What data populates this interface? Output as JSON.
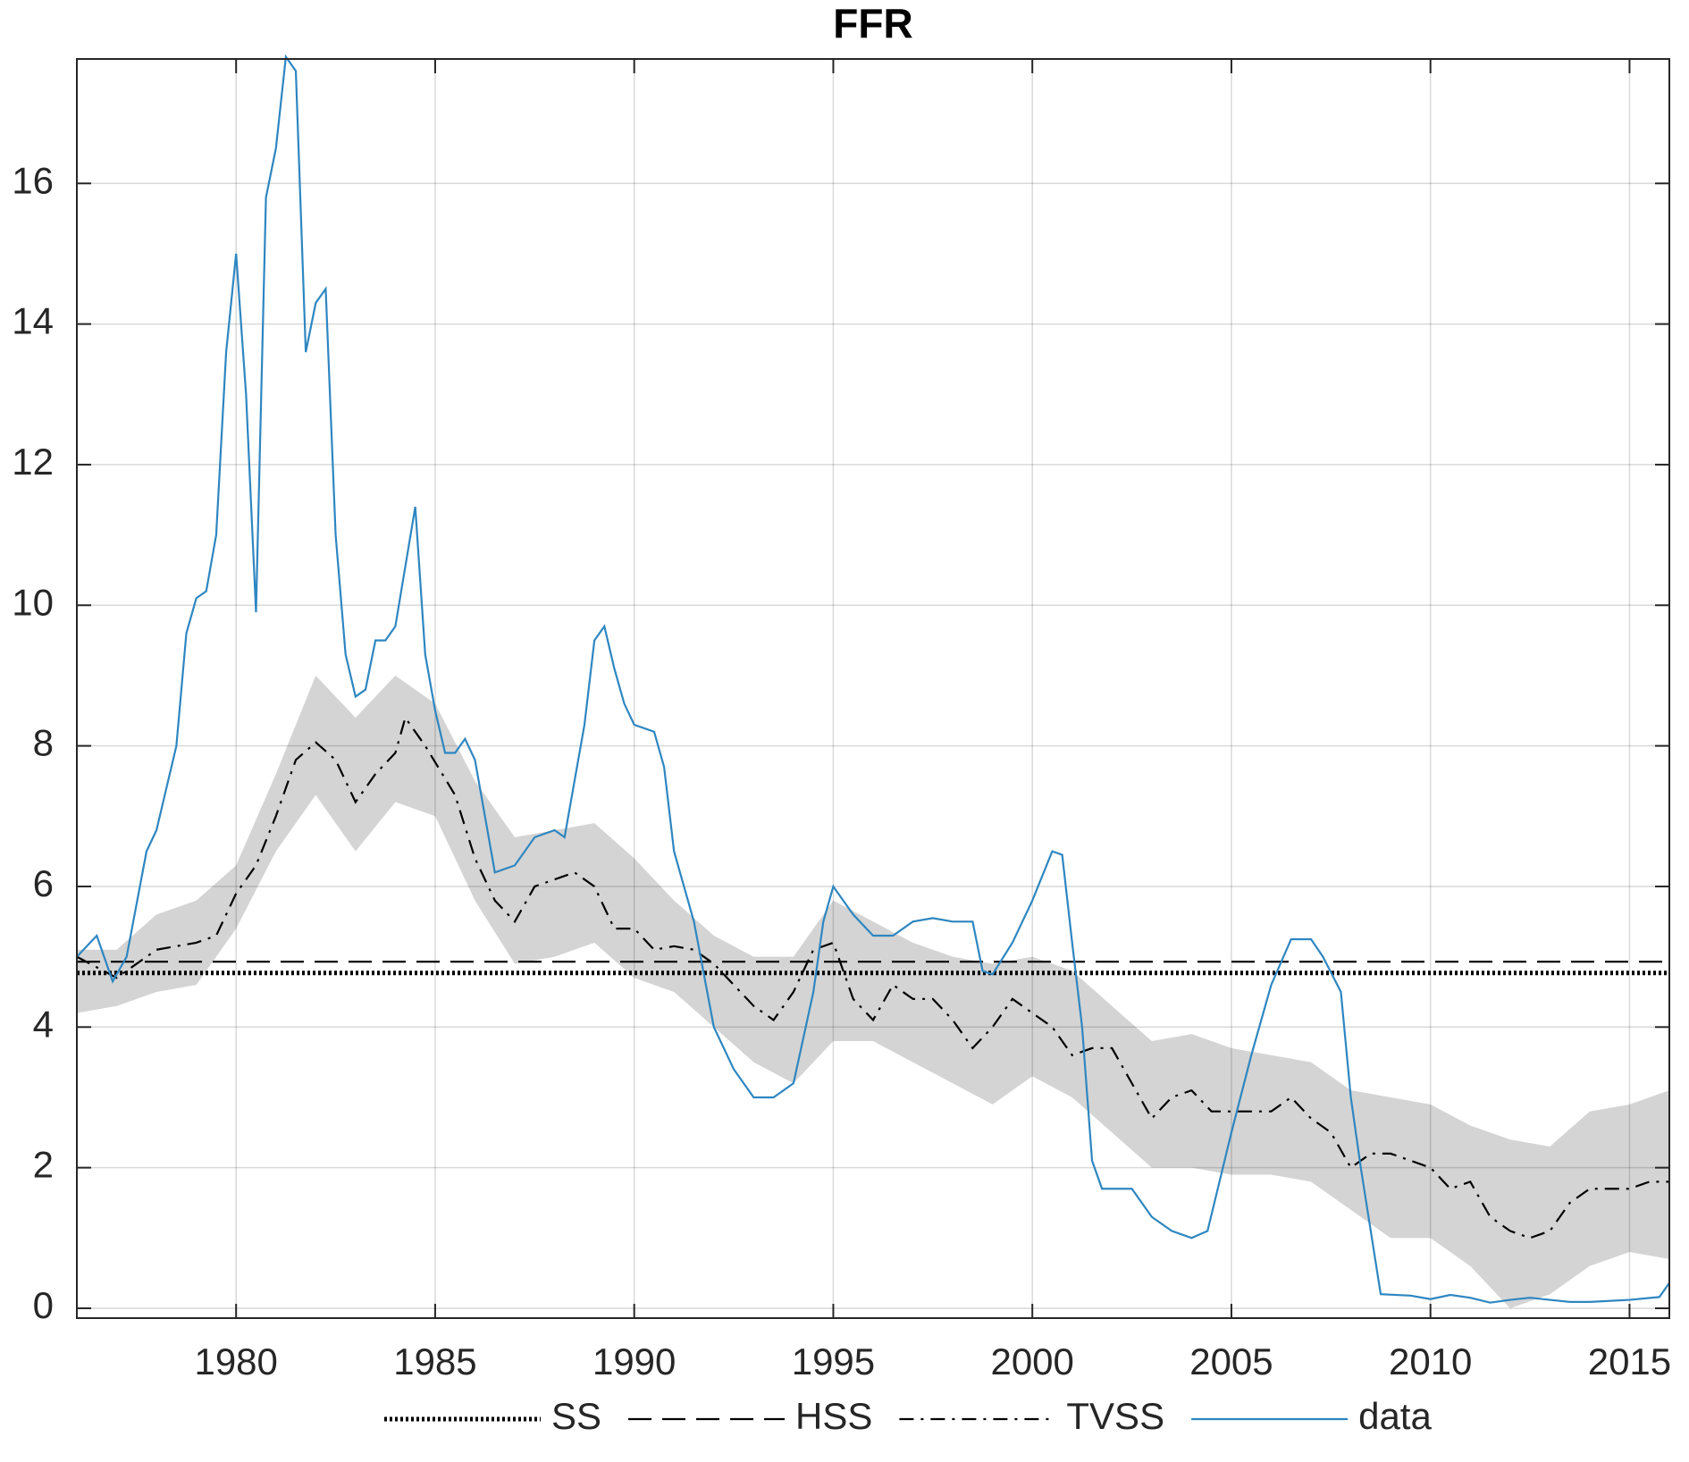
{
  "chart_data": {
    "type": "line",
    "title": "FFR",
    "xlim": [
      1976,
      2016
    ],
    "xticks": [
      1980,
      1985,
      1990,
      1995,
      2000,
      2005,
      2010,
      2015
    ],
    "ylim": [
      -0.14,
      17.77
    ],
    "yticks": [
      0,
      2,
      4,
      6,
      8,
      10,
      12,
      14,
      16
    ],
    "grid": true,
    "legend": "bottom",
    "band": {
      "color": "#d4d4d4",
      "x": [
        1976,
        1977,
        1978,
        1979,
        1980,
        1981,
        1982,
        1983,
        1984,
        1985,
        1986,
        1987,
        1988,
        1989,
        1990,
        1991,
        1992,
        1993,
        1994,
        1995,
        1996,
        1997,
        1998,
        1999,
        2000,
        2001,
        2002,
        2003,
        2004,
        2005,
        2006,
        2007,
        2008,
        2009,
        2010,
        2011,
        2012,
        2013,
        2014,
        2015,
        2016
      ],
      "upper": [
        5.1,
        5.1,
        5.6,
        5.8,
        6.3,
        7.6,
        9.0,
        8.4,
        9.0,
        8.6,
        7.5,
        6.7,
        6.8,
        6.9,
        6.4,
        5.8,
        5.3,
        5.0,
        5.0,
        5.8,
        5.5,
        5.2,
        5.0,
        4.9,
        5.0,
        4.8,
        4.3,
        3.8,
        3.9,
        3.7,
        3.6,
        3.5,
        3.1,
        3.0,
        2.9,
        2.6,
        2.4,
        2.3,
        2.8,
        2.9,
        3.1
      ],
      "lower": [
        4.2,
        4.3,
        4.5,
        4.6,
        5.4,
        6.5,
        7.3,
        6.5,
        7.2,
        7.0,
        5.8,
        4.9,
        5.0,
        5.2,
        4.7,
        4.5,
        4.0,
        3.5,
        3.2,
        3.8,
        3.8,
        3.5,
        3.2,
        2.9,
        3.3,
        3.0,
        2.5,
        2.0,
        2.0,
        1.9,
        1.9,
        1.8,
        1.4,
        1.0,
        1.0,
        0.6,
        0.0,
        0.2,
        0.6,
        0.8,
        0.7
      ]
    },
    "series": [
      {
        "name": "SS",
        "color": "#000000",
        "linestyle": "dotted",
        "x": [
          1976,
          2016
        ],
        "values": [
          4.77,
          4.77
        ]
      },
      {
        "name": "HSS",
        "color": "#000000",
        "linestyle": "dashed",
        "x": [
          1976,
          2016
        ],
        "values": [
          4.93,
          4.93
        ]
      },
      {
        "name": "TVSS",
        "color": "#000000",
        "linestyle": "dashdot",
        "x": [
          1976,
          1977,
          1978,
          1979,
          1979.5,
          1980,
          1980.5,
          1981,
          1981.5,
          1982,
          1982.5,
          1983,
          1983.5,
          1984,
          1984.25,
          1984.75,
          1985.5,
          1986,
          1986.5,
          1987,
          1987.5,
          1988,
          1988.5,
          1989,
          1989.5,
          1990,
          1990.5,
          1991,
          1991.5,
          1992,
          1992.5,
          1993,
          1993.5,
          1994,
          1994.5,
          1995,
          1995.5,
          1996,
          1996.5,
          1997,
          1997.5,
          1998,
          1998.5,
          1999,
          1999.5,
          2000,
          2000.5,
          2001,
          2001.5,
          2002,
          2002.5,
          2003,
          2003.5,
          2004,
          2004.5,
          2005,
          2006,
          2006.5,
          2007,
          2007.5,
          2008,
          2008.5,
          2009,
          2010,
          2010.5,
          2011,
          2011.5,
          2012,
          2012.5,
          2013,
          2013.5,
          2014,
          2015,
          2015.5,
          2016
        ],
        "values": [
          5.0,
          4.7,
          5.1,
          5.2,
          5.3,
          5.9,
          6.3,
          7.0,
          7.8,
          8.05,
          7.8,
          7.2,
          7.6,
          7.9,
          8.4,
          8.0,
          7.3,
          6.4,
          5.8,
          5.5,
          6.0,
          6.1,
          6.2,
          6.0,
          5.4,
          5.4,
          5.1,
          5.15,
          5.1,
          4.9,
          4.6,
          4.3,
          4.1,
          4.5,
          5.1,
          5.2,
          4.4,
          4.1,
          4.6,
          4.4,
          4.4,
          4.1,
          3.7,
          4.0,
          4.4,
          4.2,
          4.0,
          3.6,
          3.7,
          3.7,
          3.2,
          2.7,
          3.0,
          3.1,
          2.8,
          2.8,
          2.8,
          3.0,
          2.7,
          2.5,
          2.0,
          2.2,
          2.2,
          2.0,
          1.7,
          1.8,
          1.3,
          1.1,
          1.0,
          1.1,
          1.5,
          1.7,
          1.7,
          1.8,
          1.8
        ]
      },
      {
        "name": "data",
        "color": "#2e86c1",
        "linestyle": "solid",
        "x": [
          1976,
          1976.5,
          1976.9,
          1977.25,
          1977.75,
          1978,
          1978.5,
          1978.75,
          1979,
          1979.25,
          1979.5,
          1979.75,
          1980,
          1980.25,
          1980.5,
          1980.75,
          1981,
          1981.25,
          1981.5,
          1981.75,
          1982,
          1982.25,
          1982.5,
          1982.75,
          1983,
          1983.25,
          1983.5,
          1983.75,
          1984,
          1984.5,
          1984.75,
          1985,
          1985.25,
          1985.5,
          1985.75,
          1986,
          1986.5,
          1987,
          1987.5,
          1988,
          1988.25,
          1988.5,
          1988.75,
          1989,
          1989.25,
          1989.5,
          1989.75,
          1990,
          1990.5,
          1990.75,
          1991,
          1991.5,
          1992,
          1992.5,
          1993,
          1993.5,
          1994,
          1994.5,
          1994.75,
          1995,
          1995.5,
          1996,
          1996.5,
          1997,
          1997.5,
          1998,
          1998.5,
          1998.75,
          1999,
          1999.5,
          2000,
          2000.5,
          2000.75,
          2001,
          2001.25,
          2001.5,
          2001.75,
          2002.5,
          2003,
          2003.5,
          2004,
          2004.4,
          2005,
          2005.5,
          2006,
          2006.5,
          2007,
          2007.3,
          2007.75,
          2008,
          2008.25,
          2008.75,
          2009.5,
          2010,
          2010.5,
          2011,
          2011.5,
          2012,
          2012.5,
          2013,
          2013.5,
          2014,
          2015,
          2015.75,
          2016
        ],
        "values": [
          5.0,
          5.3,
          4.65,
          5.0,
          6.5,
          6.8,
          8.0,
          9.6,
          10.1,
          10.2,
          11.0,
          13.6,
          15.0,
          13.0,
          9.9,
          15.8,
          16.5,
          17.8,
          17.6,
          13.6,
          14.3,
          14.5,
          11.0,
          9.3,
          8.7,
          8.8,
          9.5,
          9.5,
          9.7,
          11.4,
          9.3,
          8.5,
          7.9,
          7.9,
          8.1,
          7.8,
          6.2,
          6.3,
          6.7,
          6.8,
          6.7,
          7.5,
          8.3,
          9.5,
          9.7,
          9.1,
          8.6,
          8.3,
          8.2,
          7.7,
          6.5,
          5.5,
          4.0,
          3.4,
          3.0,
          3.0,
          3.2,
          4.5,
          5.5,
          6.0,
          5.6,
          5.3,
          5.3,
          5.5,
          5.55,
          5.5,
          5.5,
          4.8,
          4.75,
          5.2,
          5.8,
          6.5,
          6.45,
          5.2,
          4.0,
          2.1,
          1.7,
          1.7,
          1.3,
          1.1,
          1.0,
          1.1,
          2.5,
          3.6,
          4.6,
          5.25,
          5.25,
          5.0,
          4.5,
          3.0,
          2.0,
          0.2,
          0.18,
          0.13,
          0.19,
          0.15,
          0.08,
          0.12,
          0.15,
          0.12,
          0.09,
          0.09,
          0.12,
          0.16,
          0.36
        ]
      }
    ]
  }
}
